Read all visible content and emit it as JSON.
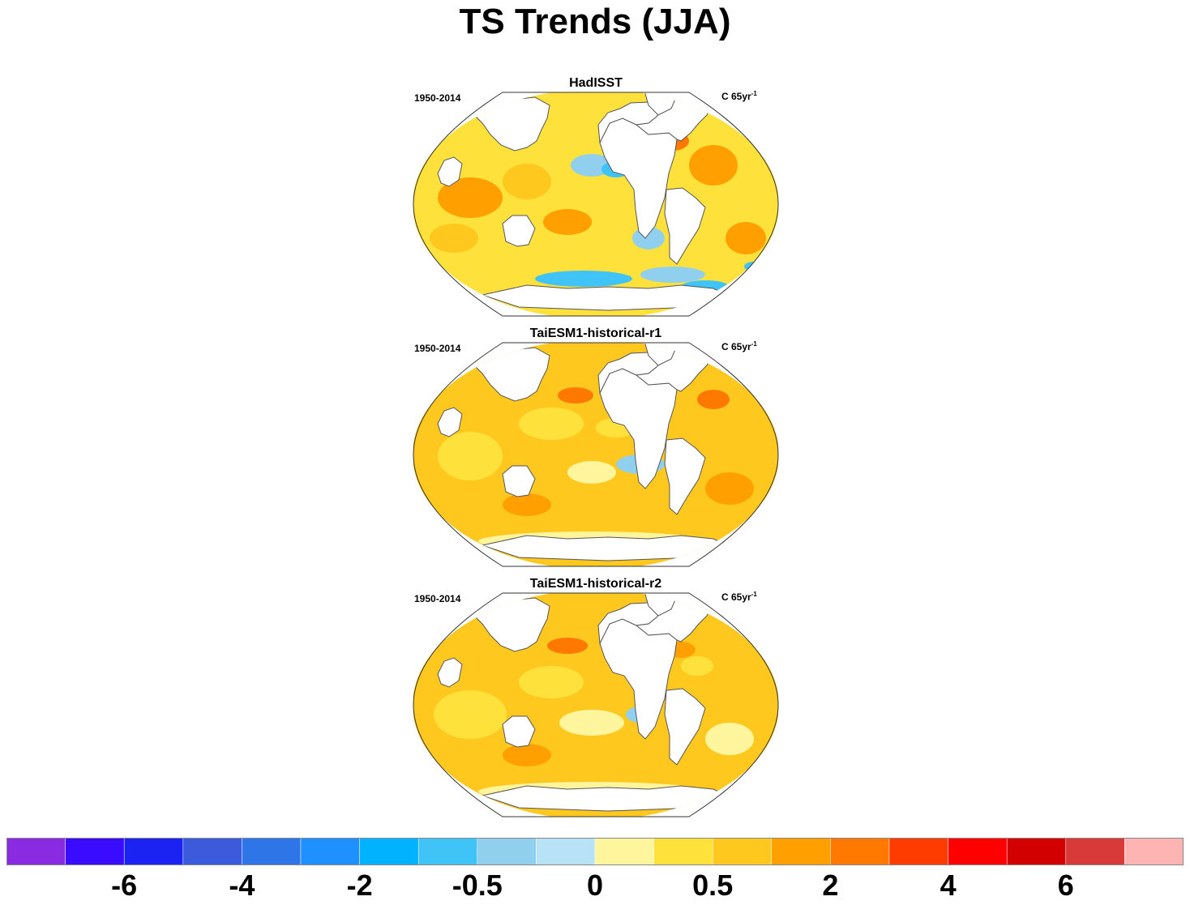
{
  "title": "TS Trends (JJA)",
  "panels": [
    {
      "name": "HadISST",
      "period": "1950-2014",
      "units": "C 65yr",
      "units_exp": "-1"
    },
    {
      "name": "TaiESM1-historical-r1",
      "period": "1950-2014",
      "units": "C 65yr",
      "units_exp": "-1"
    },
    {
      "name": "TaiESM1-historical-r2",
      "period": "1950-2014",
      "units": "C 65yr",
      "units_exp": "-1"
    }
  ],
  "colorbar": {
    "colors": [
      "#8a2be2",
      "#3a0cff",
      "#1a23f2",
      "#3c5adc",
      "#2e76e8",
      "#1e90ff",
      "#00b2ff",
      "#40c4f8",
      "#90d0ee",
      "#b8e2f5",
      "#fff59c",
      "#ffe13c",
      "#ffc81e",
      "#ffa000",
      "#ff7800",
      "#ff3c00",
      "#ff0000",
      "#d20000",
      "#d83a3a",
      "#ffb4b4"
    ],
    "labels": [
      "-6",
      "-4",
      "-2",
      "-0.5",
      "0",
      "0.5",
      "2",
      "4",
      "6"
    ]
  }
}
